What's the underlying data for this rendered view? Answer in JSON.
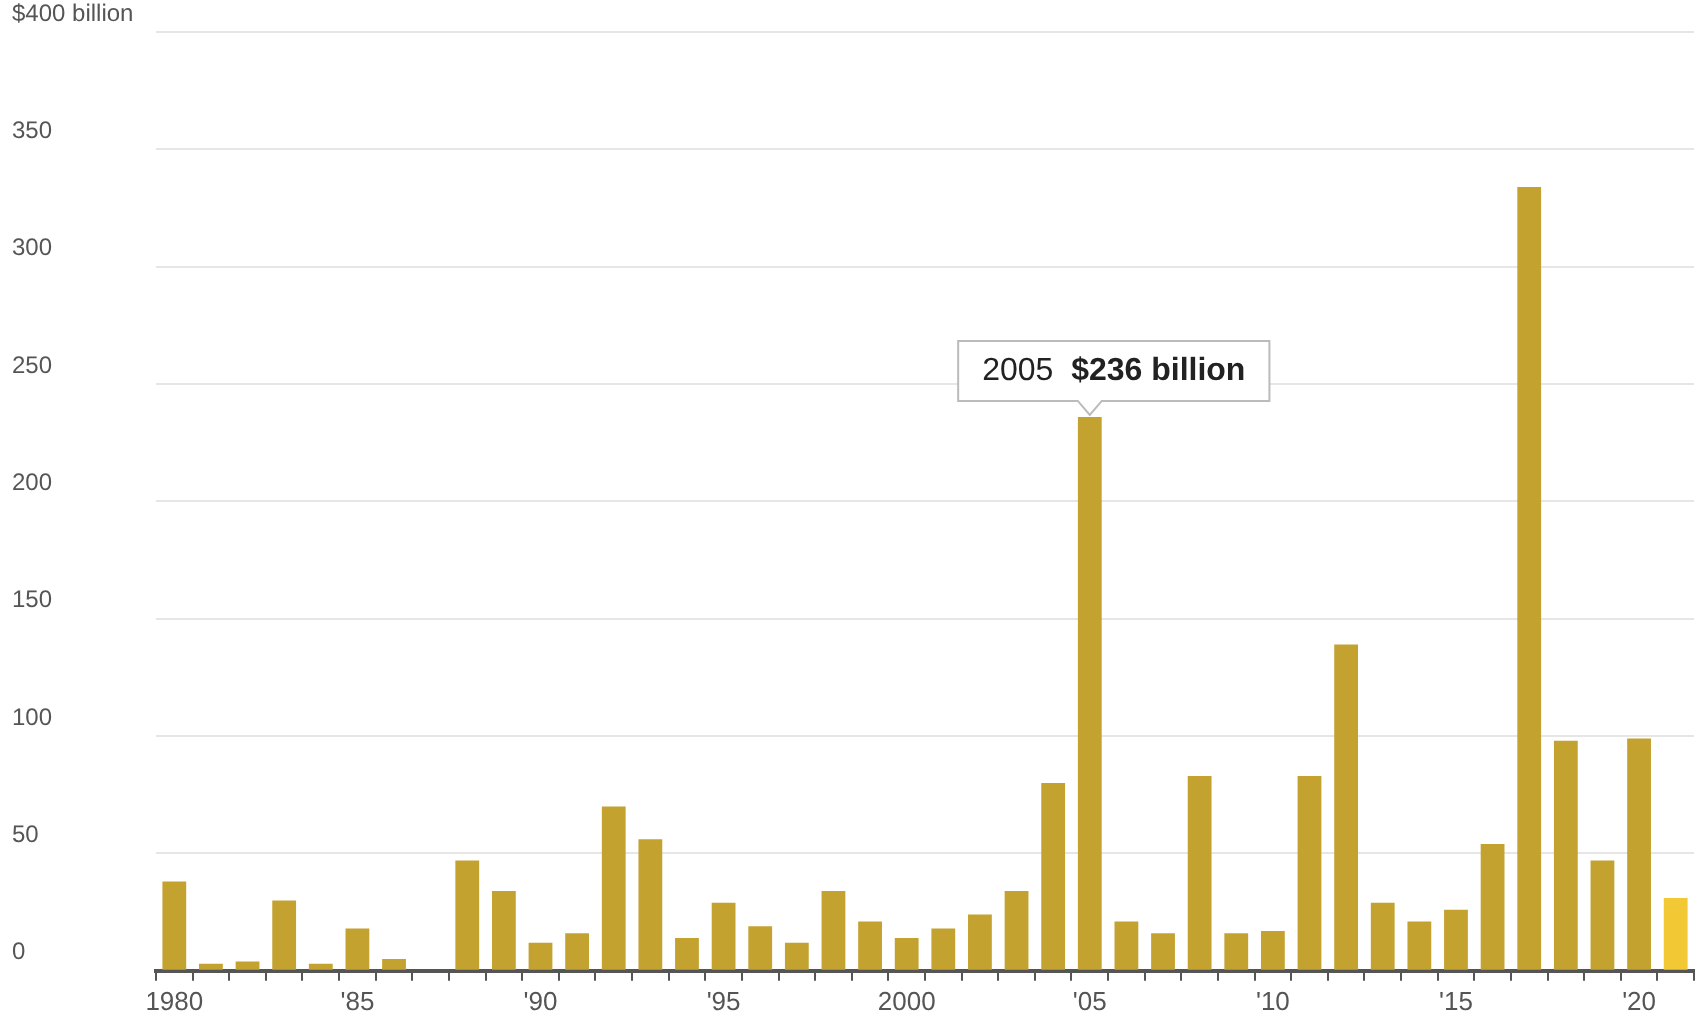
{
  "chart_data": {
    "type": "bar",
    "categories": [
      "1980",
      null,
      null,
      null,
      null,
      "'85",
      null,
      null,
      null,
      null,
      "'90",
      null,
      null,
      null,
      null,
      "'95",
      null,
      null,
      null,
      null,
      "2000",
      null,
      null,
      null,
      null,
      "'05",
      null,
      null,
      null,
      null,
      "'10",
      null,
      null,
      null,
      null,
      "'15",
      null,
      null,
      null,
      null,
      "'20",
      null
    ],
    "values": [
      38,
      3,
      4,
      30,
      3,
      18,
      5,
      0,
      47,
      34,
      12,
      16,
      70,
      56,
      14,
      29,
      19,
      12,
      34,
      21,
      14,
      18,
      24,
      34,
      80,
      236,
      21,
      16,
      83,
      16,
      17,
      83,
      139,
      29,
      21,
      26,
      54,
      334,
      98,
      47,
      99,
      31
    ],
    "colors": [
      "#c4a230",
      "#c4a230",
      "#c4a230",
      "#c4a230",
      "#c4a230",
      "#c4a230",
      "#c4a230",
      "#c4a230",
      "#c4a230",
      "#c4a230",
      "#c4a230",
      "#c4a230",
      "#c4a230",
      "#c4a230",
      "#c4a230",
      "#c4a230",
      "#c4a230",
      "#c4a230",
      "#c4a230",
      "#c4a230",
      "#c4a230",
      "#c4a230",
      "#c4a230",
      "#c4a230",
      "#c4a230",
      "#c4a230",
      "#c4a230",
      "#c4a230",
      "#c4a230",
      "#c4a230",
      "#c4a230",
      "#c4a230",
      "#c4a230",
      "#c4a230",
      "#c4a230",
      "#c4a230",
      "#c4a230",
      "#c4a230",
      "#c4a230",
      "#c4a230",
      "#c4a230",
      "#f2c935"
    ],
    "ylim": [
      0,
      400
    ],
    "yticks": [
      0,
      50,
      100,
      150,
      200,
      250,
      300,
      350,
      {
        "value": 400,
        "label": "$400 billion"
      }
    ],
    "grid": "y",
    "legend": false,
    "annotations": [
      {
        "text": "2005 $236 billion",
        "x": "'05",
        "y": 236
      }
    ]
  }
}
